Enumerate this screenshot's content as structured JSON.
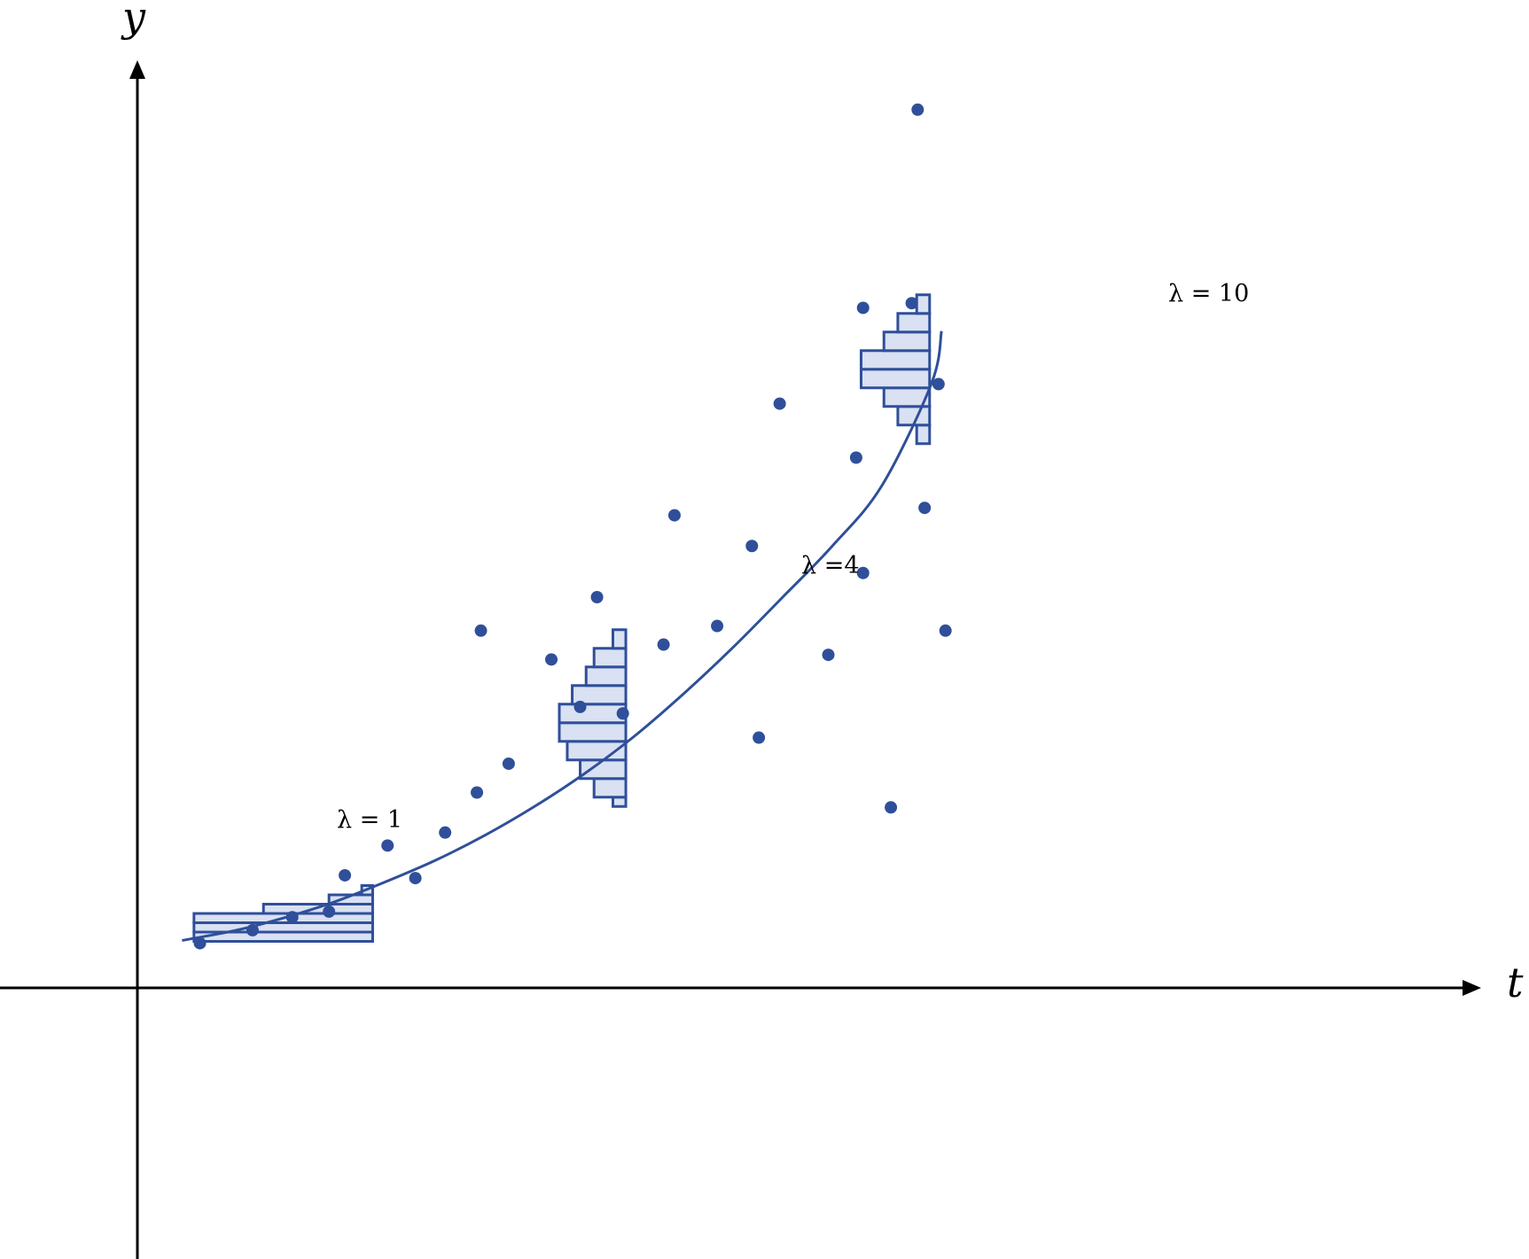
{
  "chart_data": {
    "type": "scatter",
    "title": "",
    "xlabel": "t",
    "ylabel": "y",
    "xlim": [
      0,
      10
    ],
    "ylim": [
      0,
      10
    ],
    "grid": false,
    "legend": "none",
    "colors": {
      "points": "#2f4f9a",
      "curve": "#2f4f9a",
      "histogram_fill": "#d9e1f2",
      "histogram_edge": "#2f4f9a",
      "axes": "#000000"
    },
    "series": [
      {
        "type": "scatter",
        "points": [
          {
            "x": 0.63,
            "y": 0.48
          },
          {
            "x": 1.16,
            "y": 0.62
          },
          {
            "x": 1.56,
            "y": 0.76
          },
          {
            "x": 1.93,
            "y": 0.82
          },
          {
            "x": 2.09,
            "y": 1.21
          },
          {
            "x": 2.52,
            "y": 1.53
          },
          {
            "x": 2.8,
            "y": 1.18
          },
          {
            "x": 3.1,
            "y": 1.67
          },
          {
            "x": 3.42,
            "y": 2.1
          },
          {
            "x": 3.46,
            "y": 3.84
          },
          {
            "x": 3.74,
            "y": 2.41
          },
          {
            "x": 4.17,
            "y": 3.53
          },
          {
            "x": 4.46,
            "y": 3.02
          },
          {
            "x": 4.63,
            "y": 4.2
          },
          {
            "x": 4.89,
            "y": 2.95
          },
          {
            "x": 5.3,
            "y": 3.69
          },
          {
            "x": 5.41,
            "y": 5.08
          },
          {
            "x": 5.84,
            "y": 3.89
          },
          {
            "x": 6.19,
            "y": 4.75
          },
          {
            "x": 6.26,
            "y": 2.69
          },
          {
            "x": 6.47,
            "y": 6.28
          },
          {
            "x": 6.96,
            "y": 3.58
          },
          {
            "x": 7.24,
            "y": 5.7
          },
          {
            "x": 7.31,
            "y": 4.46
          },
          {
            "x": 7.31,
            "y": 7.31
          },
          {
            "x": 7.59,
            "y": 1.94
          },
          {
            "x": 7.8,
            "y": 7.36
          },
          {
            "x": 7.86,
            "y": 9.44
          },
          {
            "x": 7.93,
            "y": 5.16
          },
          {
            "x": 8.07,
            "y": 6.49
          },
          {
            "x": 8.14,
            "y": 3.84
          }
        ]
      },
      {
        "type": "line",
        "x": [
          0.45,
          1.0,
          1.5,
          2.0,
          2.5,
          3.0,
          3.5,
          4.0,
          4.5,
          5.0,
          5.5,
          6.0,
          6.5,
          7.0,
          7.5,
          8.0,
          8.1
        ],
        "y": [
          0.51,
          0.62,
          0.76,
          0.93,
          1.14,
          1.37,
          1.64,
          1.95,
          2.3,
          2.7,
          3.16,
          3.66,
          4.2,
          4.75,
          5.4,
          6.5,
          7.06
        ]
      }
    ],
    "histograms": [
      {
        "label": "λ = 1",
        "x_right": 2.37,
        "bins": [
          {
            "y0": 0.5,
            "y1": 0.6,
            "width": 1.8
          },
          {
            "y0": 0.6,
            "y1": 0.7,
            "width": 1.8
          },
          {
            "y0": 0.7,
            "y1": 0.8,
            "width": 1.8
          },
          {
            "y0": 0.8,
            "y1": 0.9,
            "width": 1.1
          },
          {
            "y0": 0.9,
            "y1": 1.0,
            "width": 0.44
          },
          {
            "y0": 1.0,
            "y1": 1.1,
            "width": 0.11
          }
        ]
      },
      {
        "label": "λ =4",
        "x_right": 4.92,
        "bins": [
          {
            "y0": 1.95,
            "y1": 2.05,
            "width": 0.13
          },
          {
            "y0": 2.05,
            "y1": 2.25,
            "width": 0.32
          },
          {
            "y0": 2.25,
            "y1": 2.45,
            "width": 0.46
          },
          {
            "y0": 2.45,
            "y1": 2.65,
            "width": 0.59
          },
          {
            "y0": 2.65,
            "y1": 2.85,
            "width": 0.67
          },
          {
            "y0": 2.85,
            "y1": 3.05,
            "width": 0.67
          },
          {
            "y0": 3.05,
            "y1": 3.25,
            "width": 0.54
          },
          {
            "y0": 3.25,
            "y1": 3.45,
            "width": 0.4
          },
          {
            "y0": 3.45,
            "y1": 3.65,
            "width": 0.32
          },
          {
            "y0": 3.65,
            "y1": 3.85,
            "width": 0.13
          }
        ]
      },
      {
        "label": "λ = 10",
        "x_right": 7.98,
        "bins": [
          {
            "y0": 5.85,
            "y1": 6.05,
            "width": 0.13
          },
          {
            "y0": 6.05,
            "y1": 6.25,
            "width": 0.32
          },
          {
            "y0": 6.25,
            "y1": 6.45,
            "width": 0.46
          },
          {
            "y0": 6.45,
            "y1": 6.65,
            "width": 0.69
          },
          {
            "y0": 6.65,
            "y1": 6.85,
            "width": 0.69
          },
          {
            "y0": 6.85,
            "y1": 7.05,
            "width": 0.46
          },
          {
            "y0": 7.05,
            "y1": 7.25,
            "width": 0.32
          },
          {
            "y0": 7.25,
            "y1": 7.45,
            "width": 0.13
          }
        ]
      }
    ]
  }
}
